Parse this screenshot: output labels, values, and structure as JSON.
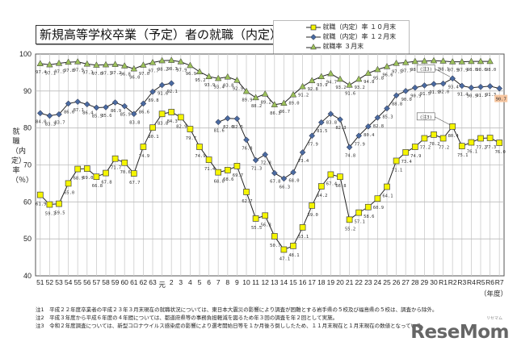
{
  "title": "新規高等学校卒業（予定）者の就職（内定）状況",
  "legend": [
    {
      "label": "就職（内定）率 １０月末",
      "marker": "square",
      "color": "#f5f500"
    },
    {
      "label": "就職（内定）率 １２月末",
      "marker": "diamond",
      "color": "#4a6aa0"
    },
    {
      "label": "就職率 ３月末",
      "marker": "triangle",
      "color": "#8db04a"
    }
  ],
  "y_axis_label": "就職（内定）率（％）",
  "x_axis_unit": "（年度）",
  "notes": [
    "注1　平成２２年度卒業者の平成２３年３月末現在の就職状況については、東日本大震災の影響により調査が困難とする岩手県の５校及び福島県の５校は、調査から除外。",
    "注2　平成３年度から平成６年度の４年間については、都道府県等の事務負担軽減を図るため年３回の調査を年２回として実施。",
    "注3　令和２年度調査については、新型コロナウイルス感染症の影響により選考開始日等を１か月後ろ倒ししたため、１１月末現在と１月末現在の数値となっている。"
  ],
  "annotations": [
    {
      "text": "(注3)",
      "series": "12月末",
      "category": "R2"
    },
    {
      "text": "(注3)",
      "series": "10月末",
      "category": "R2"
    }
  ],
  "highlight_label": {
    "text": "90.7",
    "color": "#f7c6a0"
  },
  "watermark": "ReseMom",
  "chart_data": {
    "type": "line",
    "title": "新規高等学校卒業（予定）者の就職（内定）状況",
    "xlabel": "（年度）",
    "ylabel": "就職（内定）率（％）",
    "ylim": [
      40,
      100
    ],
    "yticks": [
      40,
      50,
      60,
      70,
      80,
      90,
      100
    ],
    "grid": true,
    "legend_position": "top-right",
    "categories": [
      "51",
      "52",
      "53",
      "54",
      "55",
      "56",
      "57",
      "58",
      "59",
      "60",
      "61",
      "62",
      "63",
      "元",
      "2",
      "3",
      "4",
      "5",
      "6",
      "7",
      "8",
      "9",
      "10",
      "11",
      "12",
      "13",
      "14",
      "15",
      "16",
      "17",
      "18",
      "19",
      "20",
      "21",
      "22",
      "23",
      "24",
      "25",
      "26",
      "27",
      "28",
      "29",
      "30",
      "R1",
      "R2",
      "R3",
      "R4",
      "R5",
      "R6",
      "R7"
    ],
    "series": [
      {
        "name": "就職（内定）率 １０月末",
        "marker": "square",
        "color": "#f5f500",
        "values": [
          61.9,
          59.3,
          59.5,
          65.0,
          68.9,
          69.0,
          66.8,
          67.8,
          71.7,
          70.6,
          67.7,
          74.9,
          80.1,
          83.8,
          84.3,
          82.9,
          79.7,
          74.9,
          71.4,
          68.0,
          68.6,
          69.7,
          62.7,
          55.5,
          56.3,
          50.7,
          47.1,
          48.1,
          53.1,
          59.0,
          64.2,
          67.4,
          66.8,
          55.2,
          57.1,
          58.6,
          60.9,
          64.1,
          71.1,
          73.4,
          74.9,
          77.2,
          78.2,
          77.2,
          80.4,
          75.1,
          76.1,
          77.2,
          77.3,
          76.0
        ]
      },
      {
        "name": "就職（内定）率 １２月末",
        "marker": "diamond",
        "color": "#4a6aa0",
        "values": [
          84.0,
          83.3,
          83.7,
          86.6,
          87.1,
          86.4,
          85.5,
          85.6,
          86.9,
          85.9,
          83.8,
          86.6,
          89.8,
          91.6,
          92.1,
          null,
          null,
          null,
          null,
          81.6,
          82.6,
          82.5,
          76.8,
          71.3,
          72.8,
          67.8,
          66.3,
          68.0,
          73.4,
          77.9,
          81.5,
          83.8,
          82.3,
          74.8,
          77.9,
          80.4,
          82.8,
          85.3,
          88.8,
          90.0,
          90.9,
          91.5,
          91.9,
          92.0,
          93.4,
          91.4,
          90.9,
          91.1,
          91.3,
          90.7
        ]
      },
      {
        "name": "就職率 ３月末",
        "marker": "triangle",
        "color": "#9bc05a",
        "values": [
          97.4,
          97.1,
          97.5,
          97.8,
          97.9,
          97.3,
          97.0,
          97.1,
          97.2,
          96.8,
          96.0,
          97.0,
          97.7,
          98.2,
          98.3,
          97.9,
          96.9,
          95.2,
          93.9,
          93.4,
          93.8,
          92.9,
          89.9,
          88.2,
          89.2,
          86.3,
          86.7,
          89.0,
          91.2,
          92.8,
          93.9,
          94.7,
          93.2,
          91.6,
          93.2,
          94.8,
          95.8,
          96.6,
          97.5,
          97.7,
          98.0,
          98.1,
          98.2,
          98.1,
          97.9,
          97.9,
          98.0,
          98.0,
          98.0,
          null
        ]
      }
    ]
  }
}
